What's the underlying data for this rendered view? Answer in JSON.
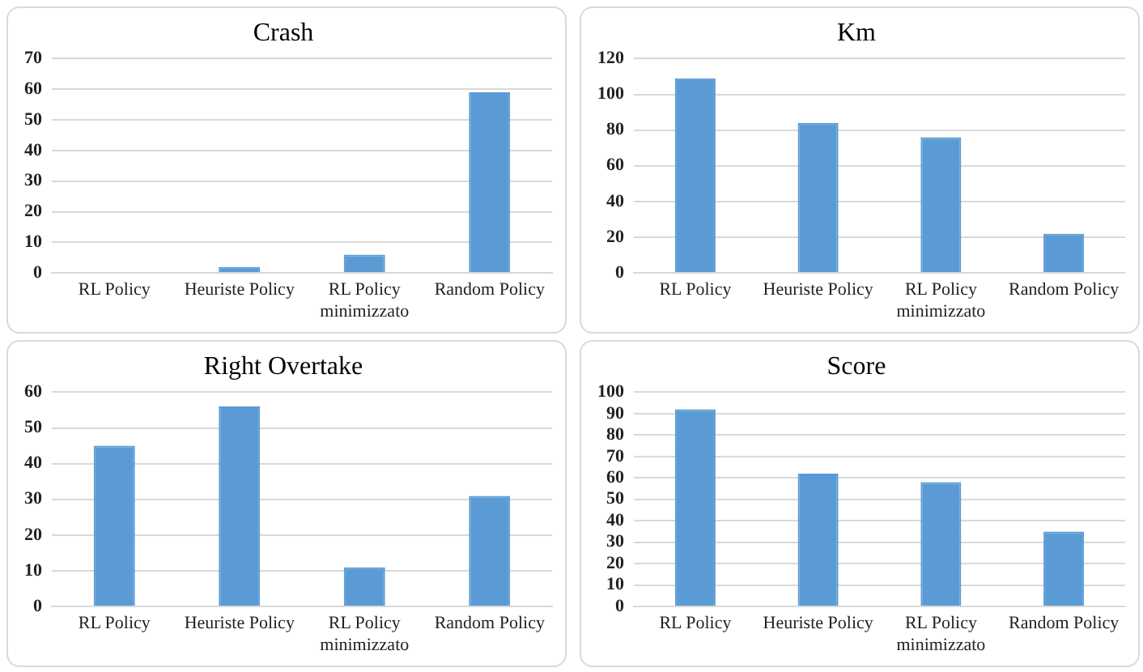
{
  "chart_data": [
    {
      "type": "bar",
      "title": "Crash",
      "categories": [
        "RL Policy",
        "Heuriste Policy",
        "RL Policy\nminimizzato",
        "Random Policy"
      ],
      "values": [
        0,
        2,
        6,
        59
      ],
      "color": "#5b9bd5",
      "ylim": [
        0,
        70
      ],
      "yticks": [
        0,
        10,
        20,
        30,
        40,
        50,
        60,
        70
      ],
      "grid": "y",
      "legend": false
    },
    {
      "type": "bar",
      "title": "Km",
      "categories": [
        "RL Policy",
        "Heuriste Policy",
        "RL Policy\nminimizzato",
        "Random Policy"
      ],
      "values": [
        109,
        84,
        76,
        22
      ],
      "color": "#5b9bd5",
      "ylim": [
        0,
        120
      ],
      "yticks": [
        0,
        20,
        40,
        60,
        80,
        100,
        120
      ],
      "grid": "y",
      "legend": false
    },
    {
      "type": "bar",
      "title": "Right Overtake",
      "categories": [
        "RL Policy",
        "Heuriste Policy",
        "RL Policy\nminimizzato",
        "Random Policy"
      ],
      "values": [
        45,
        56,
        11,
        31
      ],
      "color": "#5b9bd5",
      "ylim": [
        0,
        60
      ],
      "yticks": [
        0,
        10,
        20,
        30,
        40,
        50,
        60
      ],
      "grid": "y",
      "legend": false
    },
    {
      "type": "bar",
      "title": "Score",
      "categories": [
        "RL Policy",
        "Heuriste Policy",
        "RL Policy\nminimizzato",
        "Random Policy"
      ],
      "values": [
        92,
        62,
        58,
        35
      ],
      "color": "#5b9bd5",
      "ylim": [
        0,
        100
      ],
      "yticks": [
        0,
        10,
        20,
        30,
        40,
        50,
        60,
        70,
        80,
        90,
        100
      ],
      "grid": "y",
      "legend": false
    }
  ]
}
